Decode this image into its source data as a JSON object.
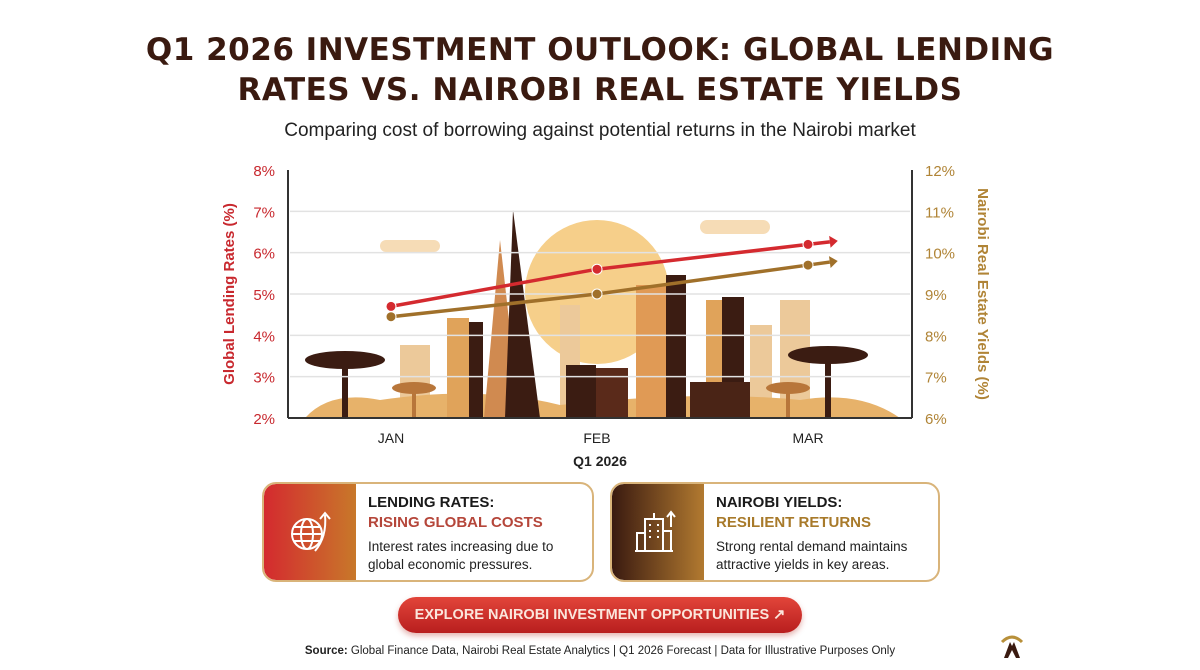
{
  "title_line1": "Q1 2026 INVESTMENT OUTLOOK: GLOBAL LENDING",
  "title_line2": "RATES VS. NAIROBI REAL ESTATE YIELDS",
  "subtitle": "Comparing cost of borrowing against potential returns in the Nairobi market",
  "chart_data": {
    "type": "line",
    "categories": [
      "JAN",
      "FEB",
      "MAR"
    ],
    "xlabel": "Q1 2026",
    "ylabel": "Global Lending Rates (%)",
    "ylabel_right": "Nairobi Real Estate Yields (%)",
    "ylim": [
      2,
      8
    ],
    "ylim_right": [
      6,
      12
    ],
    "yticks": [
      "2%",
      "3%",
      "4%",
      "5%",
      "6%",
      "7%",
      "8%"
    ],
    "yticks_right": [
      "6%",
      "7%",
      "8%",
      "9%",
      "10%",
      "11%",
      "12%"
    ],
    "grid": true,
    "series": [
      {
        "name": "Global Lending Rates",
        "axis": "left",
        "values": [
          4.7,
          5.6,
          6.2
        ],
        "color": "#d42a2f"
      },
      {
        "name": "Nairobi Real Estate Yields",
        "axis": "right",
        "values": [
          8.45,
          9.0,
          9.7
        ],
        "color": "#a0702a"
      }
    ]
  },
  "cards": [
    {
      "h1": "LENDING RATES:",
      "h2": "RISING GLOBAL COSTS",
      "desc": "Interest rates increasing due to global economic pressures.",
      "icon": "globe-arrow-up-icon"
    },
    {
      "h1": "NAIROBI YIELDS:",
      "h2": "RESILIENT RETURNS",
      "desc": "Strong rental demand maintains attractive yields in key areas.",
      "icon": "building-arrow-up-icon"
    }
  ],
  "cta": "EXPLORE NAIROBI INVESTMENT OPPORTUNITIES ↗",
  "source_label": "Source:",
  "source_text": " Global Finance Data, Nairobi Real Estate Analytics | Q1 2026 Forecast | Data for Illustrative Purposes Only",
  "colors": {
    "red": "#d42a2f",
    "gold": "#a0702a",
    "dark": "#3a1a10"
  }
}
